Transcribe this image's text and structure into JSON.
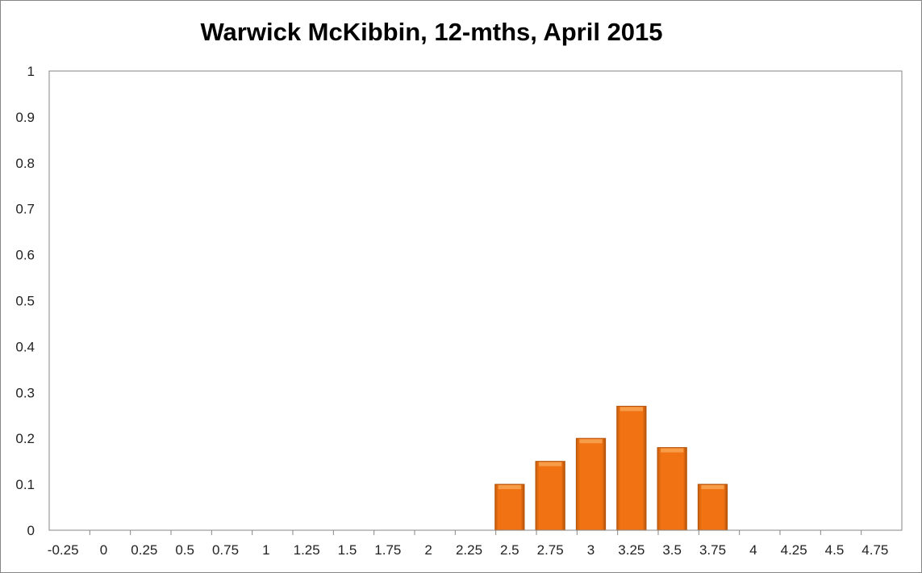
{
  "chart_data": {
    "type": "bar",
    "title": "Warwick McKibbin, 12-mths, April 2015",
    "xlabel": "",
    "ylabel": "",
    "categories": [
      "-0.25",
      "0",
      "0.25",
      "0.5",
      "0.75",
      "1",
      "1.25",
      "1.5",
      "1.75",
      "2",
      "2.25",
      "2.5",
      "2.75",
      "3",
      "3.25",
      "3.5",
      "3.75",
      "4",
      "4.25",
      "4.5",
      "4.75"
    ],
    "values": [
      0,
      0,
      0,
      0,
      0,
      0,
      0,
      0,
      0,
      0,
      0,
      0.1,
      0.15,
      0.2,
      0.27,
      0.18,
      0.1,
      0,
      0,
      0,
      0
    ],
    "ylim": [
      0,
      1
    ],
    "yticks": [
      "0",
      "0.1",
      "0.2",
      "0.3",
      "0.4",
      "0.5",
      "0.6",
      "0.7",
      "0.8",
      "0.9",
      "1"
    ],
    "grid": false,
    "legend": "none",
    "colors": {
      "bar": "#F07212",
      "bar_edge": "#B3530A",
      "axis": "#868686"
    }
  }
}
